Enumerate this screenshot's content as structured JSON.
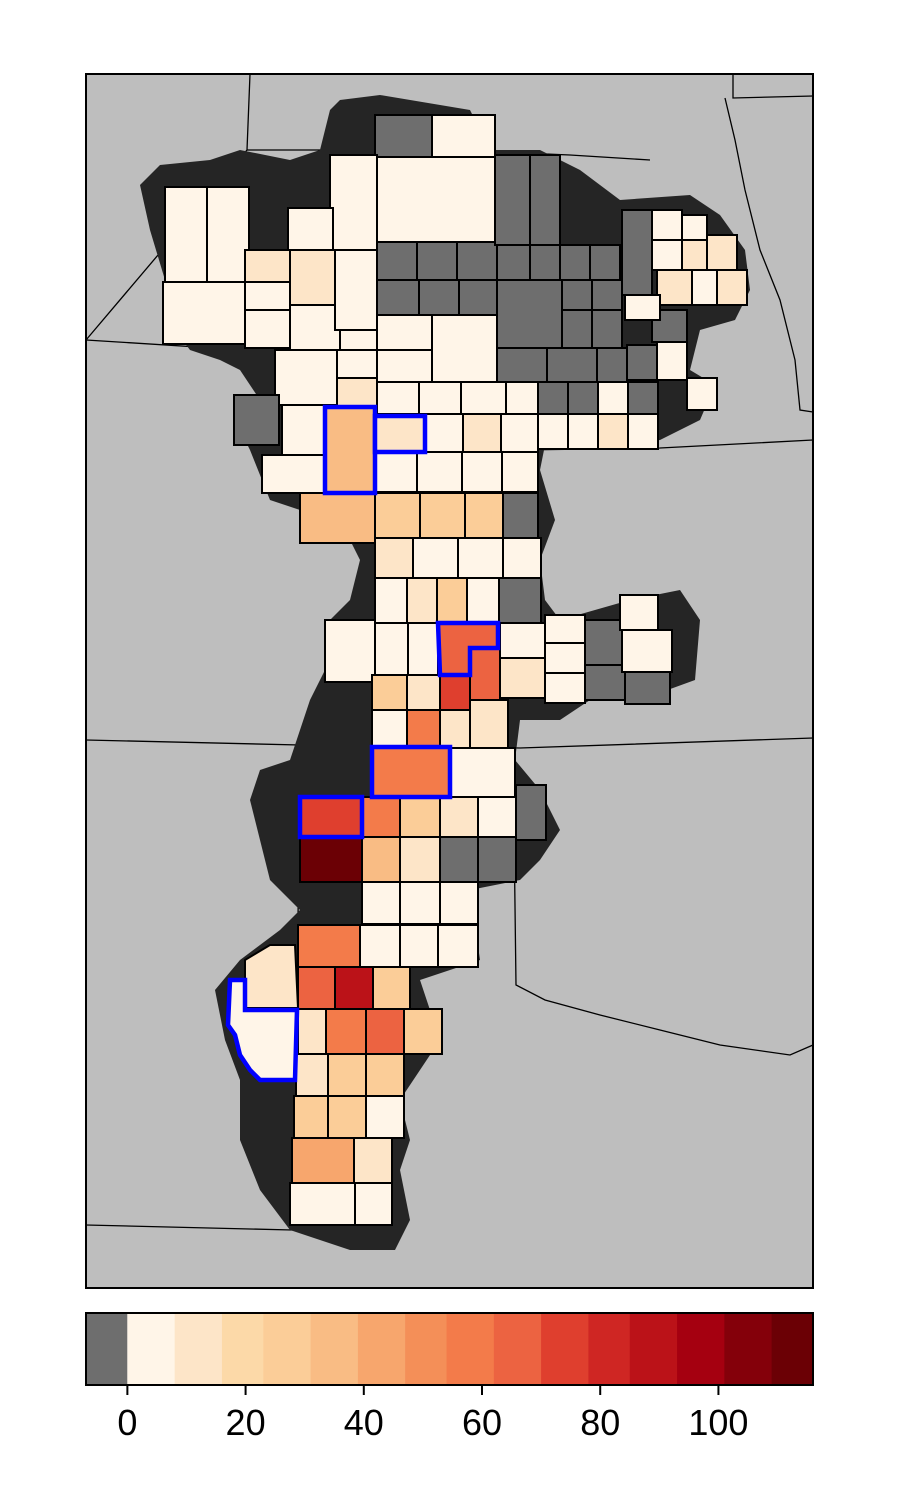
{
  "map": {
    "background_color": "#bebebe",
    "aquifer_color": "#252525",
    "county_border_color": "#000000",
    "highlight_border_color": "#0000ff",
    "nodata_color": "#6e6e6e",
    "highlighted_county_count": 6
  },
  "legend": {
    "scale_min": -7,
    "scale_max": 116,
    "nodata_color": "#6e6e6e",
    "bins": [
      {
        "from": 0,
        "to": 8,
        "color": "#fff5e8"
      },
      {
        "from": 8,
        "to": 16,
        "color": "#fde5c8"
      },
      {
        "from": 16,
        "to": 23,
        "color": "#fcd9a8"
      },
      {
        "from": 23,
        "to": 31,
        "color": "#fbcd98"
      },
      {
        "from": 31,
        "to": 39,
        "color": "#f9bc84"
      },
      {
        "from": 39,
        "to": 47,
        "color": "#f7a66d"
      },
      {
        "from": 47,
        "to": 54,
        "color": "#f48f58"
      },
      {
        "from": 54,
        "to": 62,
        "color": "#f37b4a"
      },
      {
        "from": 62,
        "to": 70,
        "color": "#ec6341"
      },
      {
        "from": 70,
        "to": 78,
        "color": "#df3f2e"
      },
      {
        "from": 78,
        "to": 85,
        "color": "#cf2623"
      },
      {
        "from": 85,
        "to": 93,
        "color": "#bb1218"
      },
      {
        "from": 93,
        "to": 101,
        "color": "#a50010"
      },
      {
        "from": 101,
        "to": 109,
        "color": "#84000a"
      },
      {
        "from": 109,
        "to": 116,
        "color": "#6b0005"
      }
    ],
    "ticks": [
      {
        "value": 0,
        "label": "0"
      },
      {
        "value": 20,
        "label": "20"
      },
      {
        "value": 40,
        "label": "40"
      },
      {
        "value": 60,
        "label": "60"
      },
      {
        "value": 80,
        "label": "80"
      },
      {
        "value": 100,
        "label": "100"
      }
    ]
  }
}
